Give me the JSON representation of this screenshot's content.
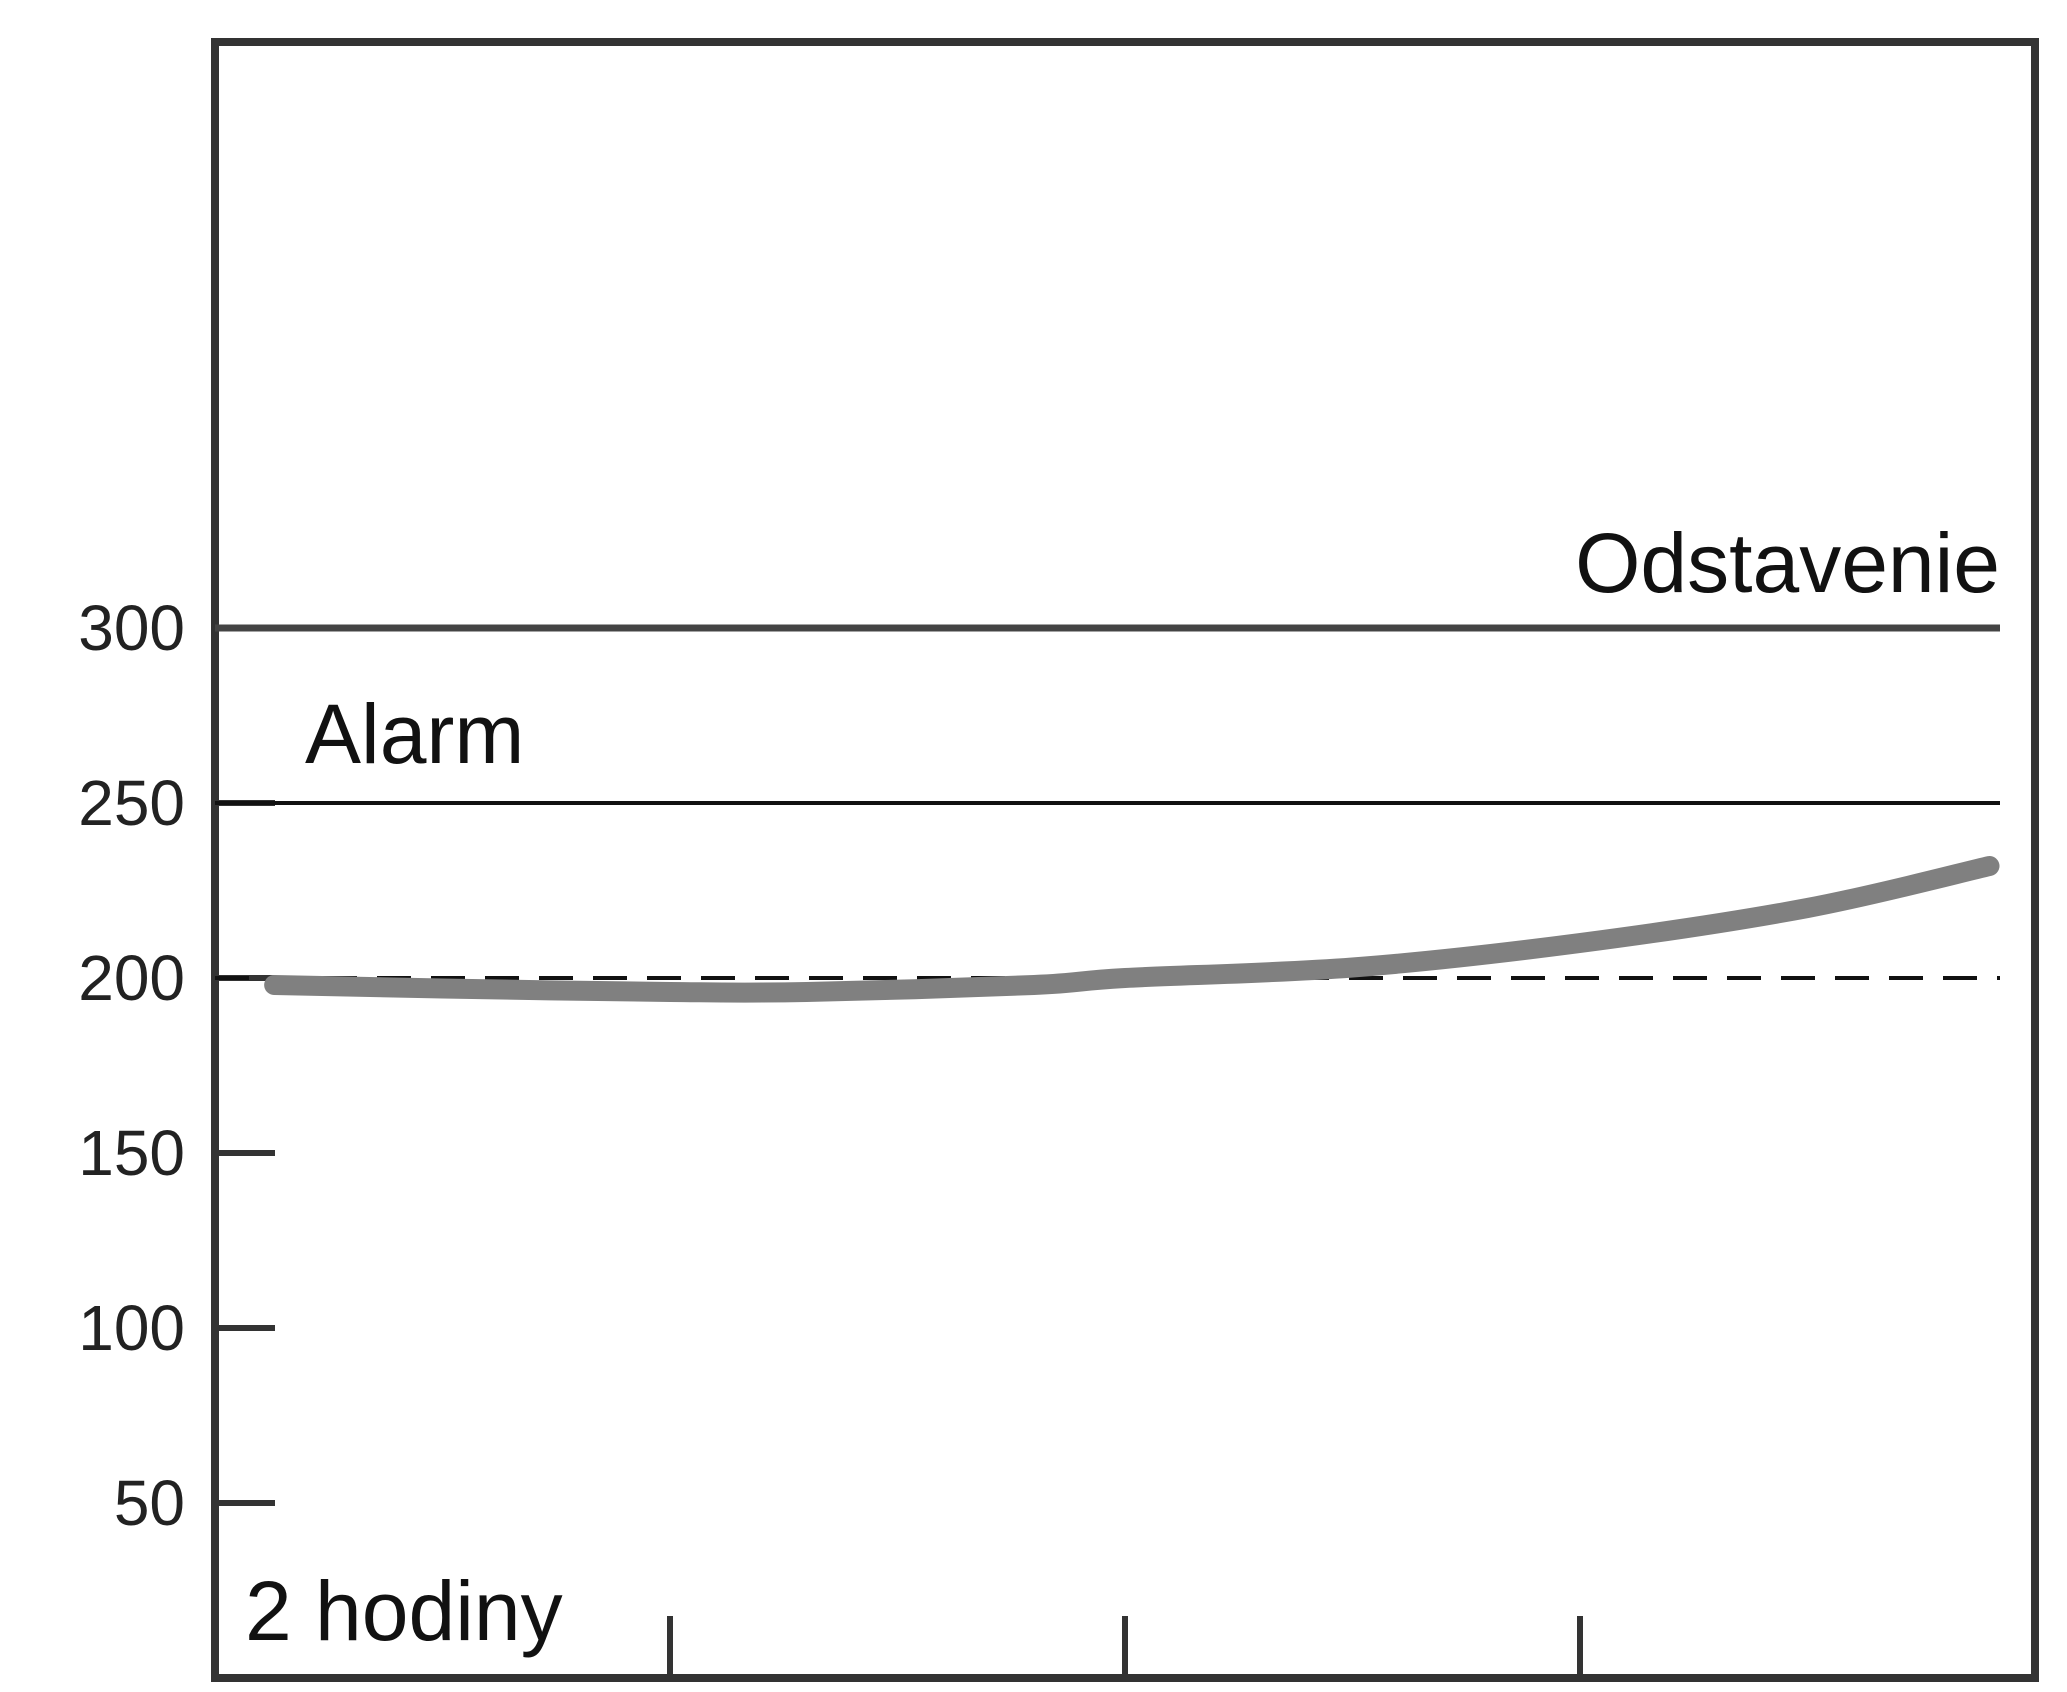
{
  "chart_data": {
    "type": "line",
    "title": "",
    "xlabel": "2 hodiny",
    "ylabel": "",
    "ylim": [
      0,
      350
    ],
    "xlim": [
      0,
      4
    ],
    "y_ticks": [
      50,
      100,
      150,
      200,
      250,
      300
    ],
    "x_ticks": [
      1,
      2,
      3
    ],
    "grid": false,
    "series": [
      {
        "x": [
          0.13,
          0.5,
          1.0,
          1.3,
          1.8,
          2.0,
          2.5,
          3.0,
          3.5,
          3.9
        ],
        "values": [
          198,
          197,
          196,
          196,
          198,
          200,
          203,
          210,
          220,
          232
        ],
        "color": "#808080"
      }
    ],
    "reference_lines": [
      {
        "label": "Odstavenie",
        "value": 300,
        "style": "solid",
        "color": "#444444"
      },
      {
        "label": "Alarm",
        "value": 250,
        "style": "solid",
        "color": "#111111"
      },
      {
        "label": "",
        "value": 200,
        "style": "dashed",
        "color": "#111111"
      }
    ]
  }
}
